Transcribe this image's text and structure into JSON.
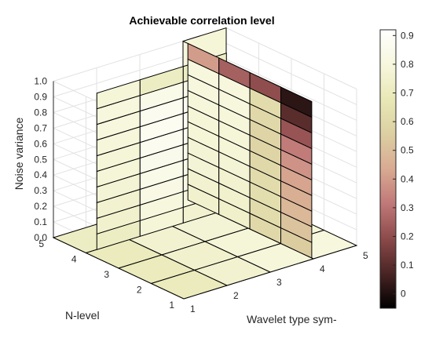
{
  "chart_data": {
    "type": "heatmap",
    "title": "Achievable correlation level",
    "xlabel": "Wavelet type sym-",
    "ylabel": "N-level",
    "zlabel": "Noise variance",
    "x_ticks": [
      "1",
      "2",
      "3",
      "4",
      "5"
    ],
    "y_ticks": [
      "1",
      "2",
      "3",
      "4",
      "5"
    ],
    "z_ticks": [
      "0.0",
      "0.1",
      "0.2",
      "0.3",
      "0.4",
      "0.5",
      "0.6",
      "0.7",
      "0.8",
      "0.9",
      "1.0"
    ],
    "colorbar_ticks": [
      "0",
      "0.1",
      "0.2",
      "0.3",
      "0.4",
      "0.5",
      "0.6",
      "0.7",
      "0.8",
      "0.9"
    ],
    "colorbar_range": [
      -0.05,
      0.92
    ],
    "colormap": [
      "#000000",
      "#4a2424",
      "#8c4a4a",
      "#c07878",
      "#d9aa92",
      "#dccfa2",
      "#e8e8b6",
      "#f7f7de",
      "#ffffff"
    ],
    "grid": true,
    "slices": {
      "z_slice_at_noise_0": {
        "cells_by_row_y1_to_y4": [
          [
            0.7,
            0.76,
            0.79,
            0.8
          ],
          [
            0.7,
            0.75,
            0.78,
            0.79
          ],
          [
            0.7,
            0.76,
            0.77,
            0.78
          ],
          [
            0.72,
            0.75,
            0.76,
            0.76
          ]
        ]
      },
      "front_slice_at_Nlevel_4": {
        "x_bins": [
          "1-2",
          "2-3",
          "3-4"
        ],
        "z_cells_0_to_1": [
          [
            0.72,
            0.75,
            0.76,
            0.77,
            0.78,
            0.78,
            0.79,
            0.8,
            0.8,
            0.78
          ],
          [
            0.78,
            0.8,
            0.82,
            0.84,
            0.85,
            0.86,
            0.87,
            0.86,
            0.84,
            0.72
          ],
          [
            0.76,
            0.8,
            0.82,
            0.83,
            0.84,
            0.86,
            0.87,
            0.86,
            0.84,
            0.72
          ]
        ]
      },
      "side_slice_at_wavelet_4": {
        "y_bins": [
          "4-5",
          "3-4",
          "2-3",
          "1-2"
        ],
        "z_cells_0_to_1": [
          [
            0.75,
            0.76,
            0.77,
            0.77,
            0.78,
            0.78,
            0.79,
            0.8,
            0.8,
            0.4
          ],
          [
            0.74,
            0.75,
            0.76,
            0.77,
            0.78,
            0.78,
            0.79,
            0.8,
            0.8,
            0.25
          ],
          [
            0.6,
            0.62,
            0.63,
            0.62,
            0.6,
            0.58,
            0.58,
            0.6,
            0.62,
            0.2
          ],
          [
            0.55,
            0.52,
            0.48,
            0.45,
            0.42,
            0.38,
            0.32,
            0.22,
            0.1,
            0.02
          ]
        ]
      },
      "far_strip_at_Nlevel_5": [
        0.68,
        0.78
      ],
      "back_plane_top_at_wavelet_4": [
        0.74,
        0.8
      ]
    }
  }
}
